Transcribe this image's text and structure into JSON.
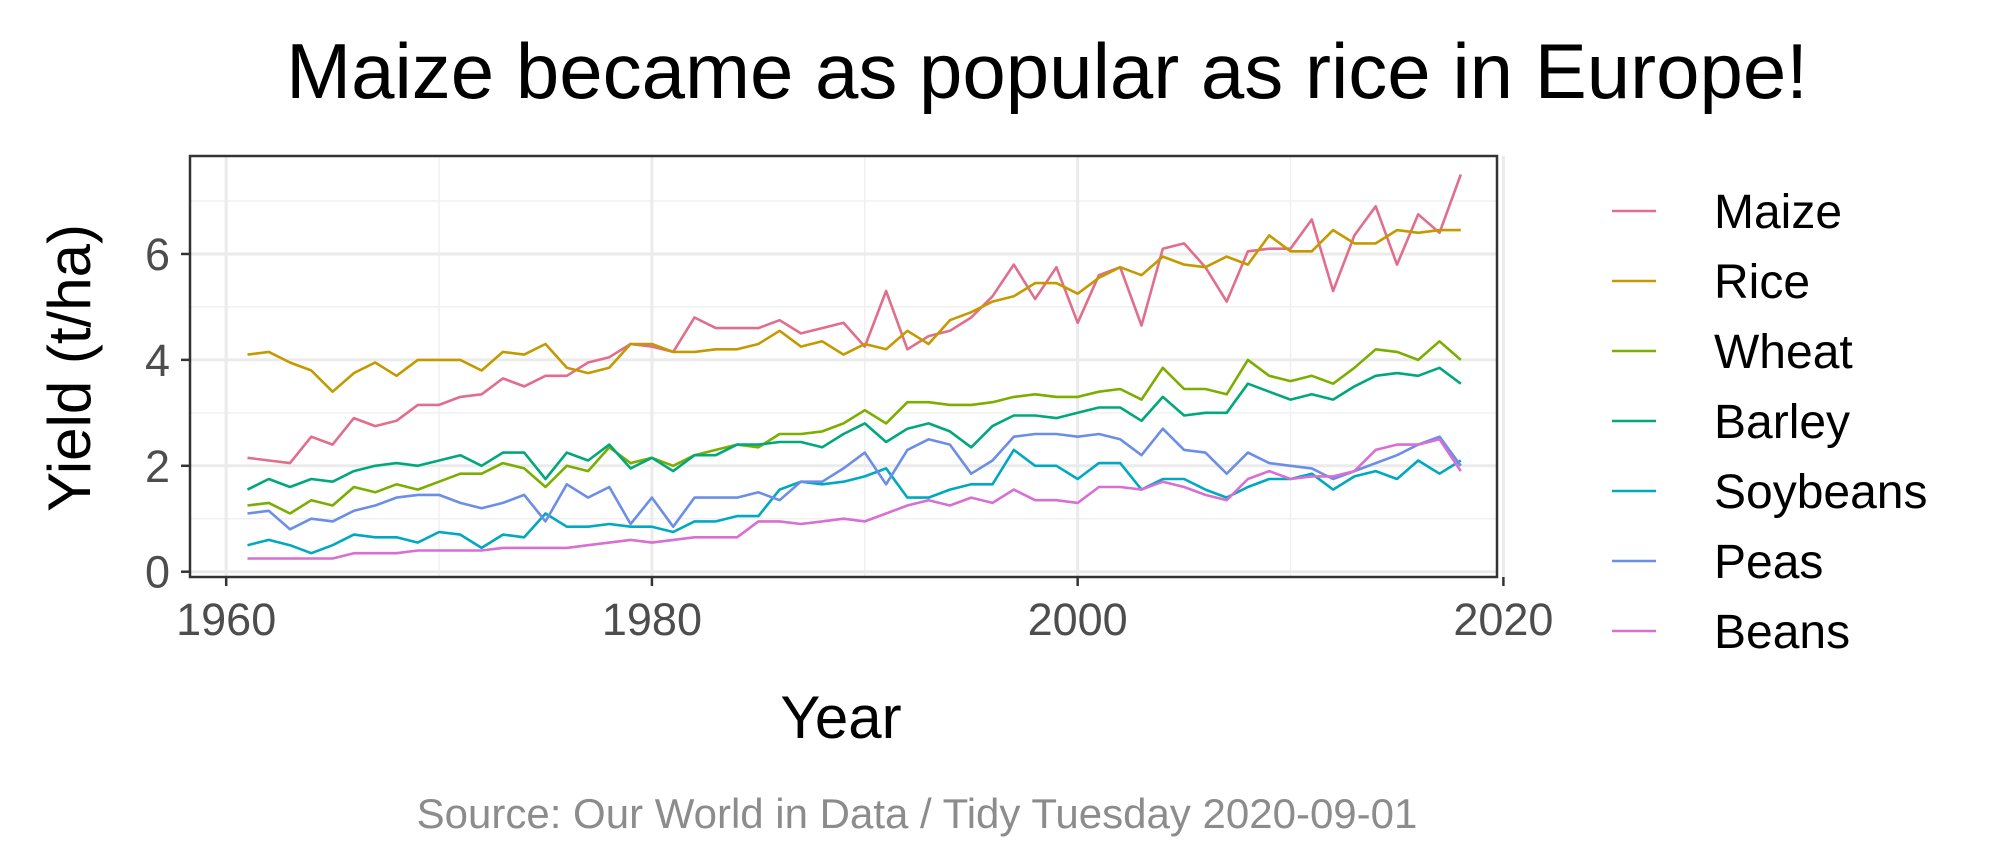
{
  "chart_data": {
    "type": "line",
    "title": "Maize became as popular as rice in Europe!",
    "caption": "Source: Our World in Data / Tidy Tuesday 2020-09-01",
    "xlabel": "Year",
    "ylabel": "Yield (t/ha)",
    "xlim": [
      1958.3,
      2019.7
    ],
    "ylim": [
      -0.1,
      7.85
    ],
    "x_ticks": [
      1960,
      1980,
      2000,
      2020
    ],
    "y_ticks": [
      0,
      2,
      4,
      6
    ],
    "grid": true,
    "legend_position": "right",
    "x": [
      1961,
      1962,
      1963,
      1964,
      1965,
      1966,
      1967,
      1968,
      1969,
      1970,
      1971,
      1972,
      1973,
      1974,
      1975,
      1976,
      1977,
      1978,
      1979,
      1980,
      1981,
      1982,
      1983,
      1984,
      1985,
      1986,
      1987,
      1988,
      1989,
      1990,
      1991,
      1992,
      1993,
      1994,
      1995,
      1996,
      1997,
      1998,
      1999,
      2000,
      2001,
      2002,
      2003,
      2004,
      2005,
      2006,
      2007,
      2008,
      2009,
      2010,
      2011,
      2012,
      2013,
      2014,
      2015,
      2016,
      2017,
      2018
    ],
    "series": [
      {
        "name": "Maize",
        "color": "#E06E8C",
        "values": [
          2.15,
          2.1,
          2.05,
          2.55,
          2.4,
          2.9,
          2.75,
          2.85,
          3.15,
          3.15,
          3.3,
          3.35,
          3.65,
          3.5,
          3.7,
          3.7,
          3.95,
          4.05,
          4.3,
          4.25,
          4.15,
          4.8,
          4.6,
          4.6,
          4.6,
          4.75,
          4.5,
          4.6,
          4.7,
          4.25,
          5.3,
          4.2,
          4.45,
          4.55,
          4.8,
          5.2,
          5.8,
          5.15,
          5.75,
          4.7,
          5.6,
          5.75,
          4.65,
          6.1,
          6.2,
          5.75,
          5.1,
          6.05,
          6.1,
          6.1,
          6.65,
          5.3,
          6.35,
          6.9,
          5.8,
          6.75,
          6.4,
          7.5
        ]
      },
      {
        "name": "Rice",
        "color": "#C49A00",
        "values": [
          4.1,
          4.15,
          3.95,
          3.8,
          3.4,
          3.75,
          3.95,
          3.7,
          4.0,
          4.0,
          4.0,
          3.8,
          4.15,
          4.1,
          4.3,
          3.85,
          3.75,
          3.85,
          4.3,
          4.3,
          4.15,
          4.15,
          4.2,
          4.2,
          4.3,
          4.55,
          4.25,
          4.35,
          4.1,
          4.3,
          4.2,
          4.55,
          4.3,
          4.75,
          4.9,
          5.1,
          5.2,
          5.45,
          5.45,
          5.25,
          5.55,
          5.75,
          5.6,
          5.95,
          5.8,
          5.75,
          5.95,
          5.8,
          6.35,
          6.05,
          6.05,
          6.45,
          6.2,
          6.2,
          6.45,
          6.4,
          6.45,
          6.45
        ]
      },
      {
        "name": "Wheat",
        "color": "#7CAE00",
        "values": [
          1.25,
          1.3,
          1.1,
          1.35,
          1.25,
          1.6,
          1.5,
          1.65,
          1.55,
          1.7,
          1.85,
          1.85,
          2.05,
          1.95,
          1.6,
          2.0,
          1.9,
          2.35,
          2.05,
          2.15,
          2.0,
          2.2,
          2.3,
          2.4,
          2.35,
          2.6,
          2.6,
          2.65,
          2.8,
          3.05,
          2.8,
          3.2,
          3.2,
          3.15,
          3.15,
          3.2,
          3.3,
          3.35,
          3.3,
          3.3,
          3.4,
          3.45,
          3.25,
          3.85,
          3.45,
          3.45,
          3.35,
          4.0,
          3.7,
          3.6,
          3.7,
          3.55,
          3.85,
          4.2,
          4.15,
          4.0,
          4.35,
          4.0
        ]
      },
      {
        "name": "Barley",
        "color": "#00A87B",
        "values": [
          1.55,
          1.75,
          1.6,
          1.75,
          1.7,
          1.9,
          2.0,
          2.05,
          2.0,
          2.1,
          2.2,
          2.0,
          2.25,
          2.25,
          1.75,
          2.25,
          2.1,
          2.4,
          1.95,
          2.15,
          1.9,
          2.2,
          2.2,
          2.4,
          2.4,
          2.45,
          2.45,
          2.35,
          2.6,
          2.8,
          2.45,
          2.7,
          2.8,
          2.65,
          2.35,
          2.75,
          2.95,
          2.95,
          2.9,
          3.0,
          3.1,
          3.1,
          2.85,
          3.3,
          2.95,
          3.0,
          3.0,
          3.55,
          3.4,
          3.25,
          3.35,
          3.25,
          3.5,
          3.7,
          3.75,
          3.7,
          3.85,
          3.55
        ]
      },
      {
        "name": "Soybeans",
        "color": "#00A9C0",
        "values": [
          0.5,
          0.6,
          0.5,
          0.35,
          0.5,
          0.7,
          0.65,
          0.65,
          0.55,
          0.75,
          0.7,
          0.45,
          0.7,
          0.65,
          1.1,
          0.85,
          0.85,
          0.9,
          0.85,
          0.85,
          0.75,
          0.95,
          0.95,
          1.05,
          1.05,
          1.55,
          1.7,
          1.65,
          1.7,
          1.8,
          1.95,
          1.4,
          1.4,
          1.55,
          1.65,
          1.65,
          2.3,
          2.0,
          2.0,
          1.75,
          2.05,
          2.05,
          1.55,
          1.75,
          1.75,
          1.55,
          1.4,
          1.6,
          1.75,
          1.75,
          1.85,
          1.55,
          1.8,
          1.9,
          1.75,
          2.1,
          1.85,
          2.1
        ]
      },
      {
        "name": "Peas",
        "color": "#6C8EE6",
        "values": [
          1.1,
          1.15,
          0.8,
          1.0,
          0.95,
          1.15,
          1.25,
          1.4,
          1.45,
          1.45,
          1.3,
          1.2,
          1.3,
          1.45,
          0.95,
          1.65,
          1.4,
          1.6,
          0.9,
          1.4,
          0.85,
          1.4,
          1.4,
          1.4,
          1.5,
          1.35,
          1.7,
          1.7,
          1.95,
          2.25,
          1.65,
          2.3,
          2.5,
          2.4,
          1.85,
          2.1,
          2.55,
          2.6,
          2.6,
          2.55,
          2.6,
          2.5,
          2.2,
          2.7,
          2.3,
          2.25,
          1.85,
          2.25,
          2.05,
          2.0,
          1.95,
          1.75,
          1.9,
          2.05,
          2.2,
          2.4,
          2.55,
          2.0
        ]
      },
      {
        "name": "Beans",
        "color": "#D86FD2",
        "values": [
          0.25,
          0.25,
          0.25,
          0.25,
          0.25,
          0.35,
          0.35,
          0.35,
          0.4,
          0.4,
          0.4,
          0.4,
          0.45,
          0.45,
          0.45,
          0.45,
          0.5,
          0.55,
          0.6,
          0.55,
          0.6,
          0.65,
          0.65,
          0.65,
          0.95,
          0.95,
          0.9,
          0.95,
          1.0,
          0.95,
          1.1,
          1.25,
          1.35,
          1.25,
          1.4,
          1.3,
          1.55,
          1.35,
          1.35,
          1.3,
          1.6,
          1.6,
          1.55,
          1.7,
          1.6,
          1.45,
          1.35,
          1.75,
          1.9,
          1.75,
          1.8,
          1.8,
          1.9,
          2.3,
          2.4,
          2.4,
          2.5,
          1.9
        ]
      }
    ]
  }
}
